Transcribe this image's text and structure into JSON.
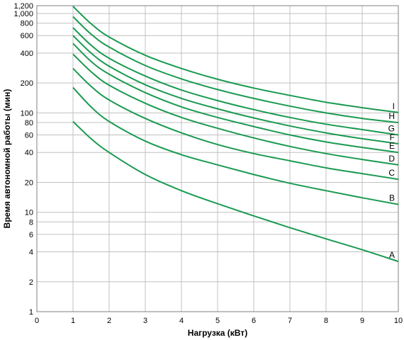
{
  "chart_data": {
    "type": "line",
    "title": "",
    "xlabel": "Нагрузка (кВт)",
    "ylabel": "Время автономной работы (мин)",
    "xlim": [
      0,
      10
    ],
    "ylim": [
      1,
      1200
    ],
    "yscale": "log",
    "grid": true,
    "x_ticks": [
      "0",
      "1",
      "2",
      "3",
      "4",
      "5",
      "6",
      "7",
      "8",
      "9",
      "10"
    ],
    "y_ticks": [
      {
        "value": 1,
        "label": "1"
      },
      {
        "value": 2,
        "label": "2"
      },
      {
        "value": 4,
        "label": "4"
      },
      {
        "value": 6,
        "label": "6"
      },
      {
        "value": 8,
        "label": "8"
      },
      {
        "value": 10,
        "label": "10"
      },
      {
        "value": 20,
        "label": "20"
      },
      {
        "value": 40,
        "label": "40"
      },
      {
        "value": 60,
        "label": "60"
      },
      {
        "value": 80,
        "label": "80"
      },
      {
        "value": 100,
        "label": "100"
      },
      {
        "value": 200,
        "label": "200"
      },
      {
        "value": 400,
        "label": "400"
      },
      {
        "value": 600,
        "label": "600"
      },
      {
        "value": 800,
        "label": "800"
      },
      {
        "value": 1000,
        "label": "1,000"
      },
      {
        "value": 1200,
        "label": "1,200"
      }
    ],
    "line_color": "#1a9a50",
    "x": [
      1,
      1.5,
      2,
      3,
      4,
      5,
      6,
      7,
      8,
      9,
      10
    ],
    "series": [
      {
        "name": "A",
        "values": [
          82,
          55,
          40,
          24,
          16.5,
          12.2,
          9.2,
          7.0,
          5.4,
          4.2,
          3.2
        ]
      },
      {
        "name": "B",
        "values": [
          180,
          115,
          82,
          52,
          38,
          30,
          24,
          19.6,
          16.5,
          14.0,
          12.0
        ]
      },
      {
        "name": "C",
        "values": [
          280,
          185,
          135,
          88,
          63,
          48,
          39,
          33,
          28,
          24.5,
          21.5
        ]
      },
      {
        "name": "D",
        "values": [
          390,
          260,
          190,
          125,
          90,
          70,
          56,
          46,
          39,
          34,
          30
        ]
      },
      {
        "name": "E",
        "values": [
          500,
          330,
          245,
          160,
          115,
          90,
          73,
          60,
          51,
          45,
          40
        ]
      },
      {
        "name": "F",
        "values": [
          600,
          400,
          295,
          192,
          140,
          110,
          89,
          74,
          63,
          55,
          49
        ]
      },
      {
        "name": "G",
        "values": [
          720,
          480,
          355,
          235,
          170,
          133,
          108,
          90,
          77,
          68,
          60
        ]
      },
      {
        "name": "H",
        "values": [
          930,
          620,
          460,
          300,
          220,
          172,
          140,
          117,
          100,
          88,
          80
        ]
      },
      {
        "name": "I",
        "values": [
          1180,
          790,
          580,
          380,
          280,
          218,
          178,
          150,
          128,
          113,
          101
        ]
      }
    ]
  }
}
